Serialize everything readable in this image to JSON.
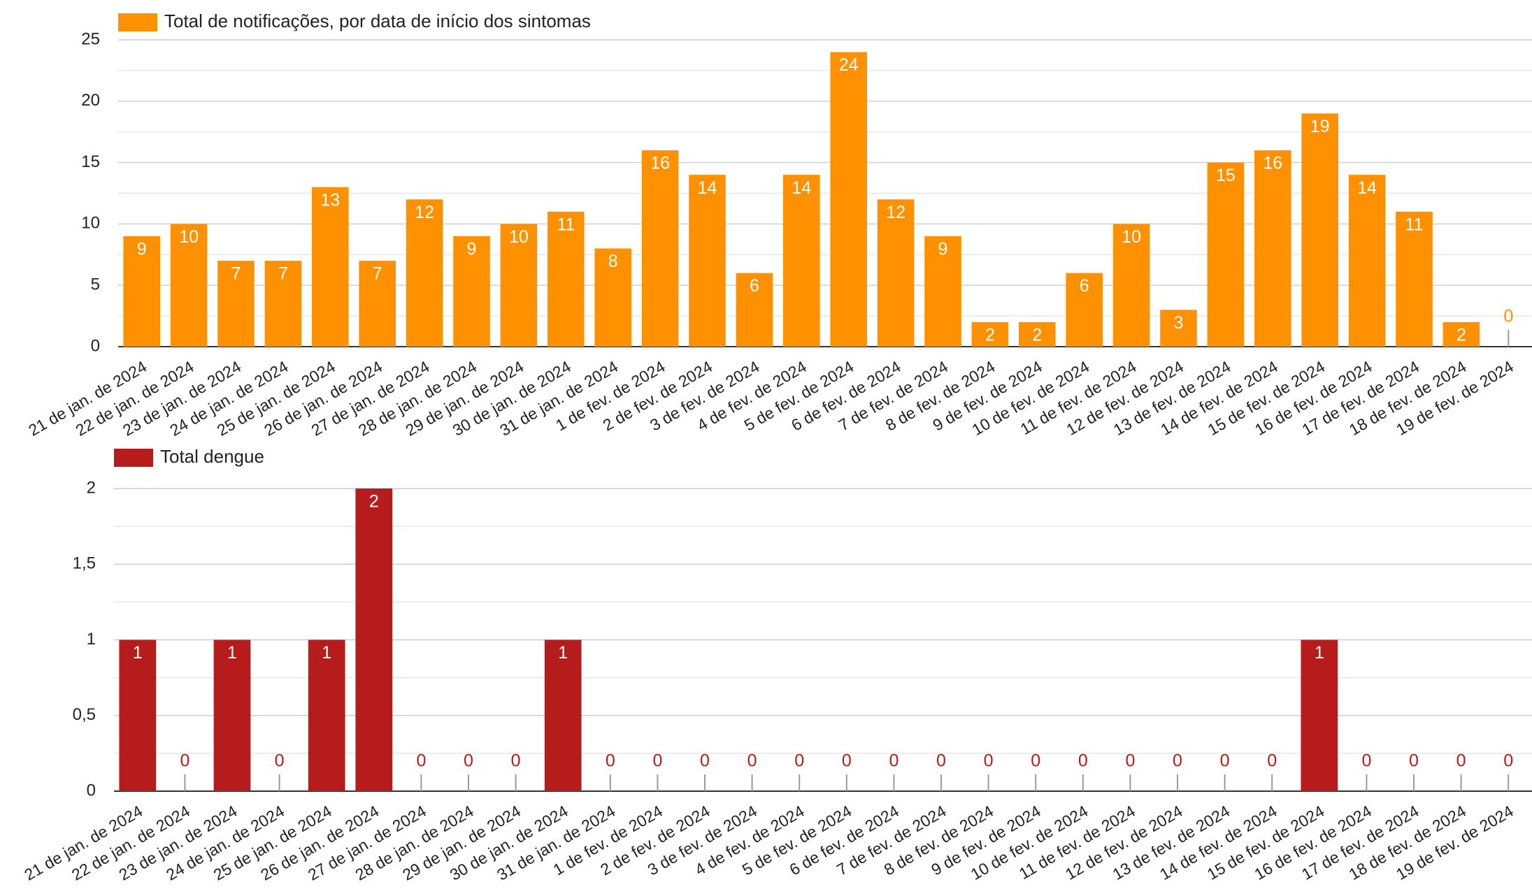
{
  "chart_data": [
    {
      "type": "bar",
      "categories": [
        "21 de jan. de 2024",
        "22 de jan. de 2024",
        "23 de jan. de 2024",
        "24 de jan. de 2024",
        "25 de jan. de 2024",
        "26 de jan. de 2024",
        "27 de jan. de 2024",
        "28 de jan. de 2024",
        "29 de jan. de 2024",
        "30 de jan. de 2024",
        "31 de jan. de 2024",
        "1 de fev. de 2024",
        "2 de fev. de 2024",
        "3 de fev. de 2024",
        "4 de fev. de 2024",
        "5 de fev. de 2024",
        "6 de fev. de 2024",
        "7 de fev. de 2024",
        "8 de fev. de 2024",
        "9 de fev. de 2024",
        "10 de fev. de 2024",
        "11 de fev. de 2024",
        "12 de fev. de 2024",
        "13 de fev. de 2024",
        "14 de fev. de 2024",
        "15 de fev. de 2024",
        "16 de fev. de 2024",
        "17 de fev. de 2024",
        "18 de fev. de 2024",
        "19 de fev. de 2024"
      ],
      "series": [
        {
          "name": "Total de notificações, por data de início dos sintomas",
          "color": "#ff9000",
          "values": [
            9,
            10,
            7,
            7,
            13,
            7,
            12,
            9,
            10,
            11,
            8,
            16,
            14,
            6,
            14,
            24,
            12,
            9,
            2,
            2,
            6,
            10,
            3,
            15,
            16,
            19,
            14,
            11,
            2,
            0
          ]
        }
      ],
      "ylim": [
        0,
        25
      ],
      "yticks": [
        0,
        5,
        10,
        15,
        20,
        25
      ],
      "grid": true
    },
    {
      "type": "bar",
      "categories": [
        "21 de jan. de 2024",
        "22 de jan. de 2024",
        "23 de jan. de 2024",
        "24 de jan. de 2024",
        "25 de jan. de 2024",
        "26 de jan. de 2024",
        "27 de jan. de 2024",
        "28 de jan. de 2024",
        "29 de jan. de 2024",
        "30 de jan. de 2024",
        "31 de jan. de 2024",
        "1 de fev. de 2024",
        "2 de fev. de 2024",
        "3 de fev. de 2024",
        "4 de fev. de 2024",
        "5 de fev. de 2024",
        "6 de fev. de 2024",
        "7 de fev. de 2024",
        "8 de fev. de 2024",
        "9 de fev. de 2024",
        "10 de fev. de 2024",
        "11 de fev. de 2024",
        "12 de fev. de 2024",
        "13 de fev. de 2024",
        "14 de fev. de 2024",
        "15 de fev. de 2024",
        "16 de fev. de 2024",
        "17 de fev. de 2024",
        "18 de fev. de 2024",
        "19 de fev. de 2024"
      ],
      "series": [
        {
          "name": "Total dengue",
          "color": "#b71c1c",
          "values": [
            1,
            0,
            1,
            0,
            1,
            2,
            0,
            0,
            0,
            1,
            0,
            0,
            0,
            0,
            0,
            0,
            0,
            0,
            0,
            0,
            0,
            0,
            0,
            0,
            0,
            1,
            0,
            0,
            0,
            0
          ]
        }
      ],
      "ylim": [
        0,
        2
      ],
      "yticks": [
        0,
        {
          "value": 0.5,
          "label": "0,5"
        },
        1,
        {
          "value": 1.5,
          "label": "1,5"
        },
        2
      ],
      "grid": true
    }
  ]
}
